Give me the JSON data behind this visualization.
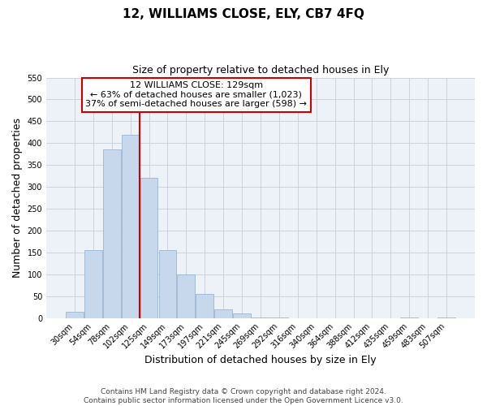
{
  "title": "12, WILLIAMS CLOSE, ELY, CB7 4FQ",
  "subtitle": "Size of property relative to detached houses in Ely",
  "xlabel": "Distribution of detached houses by size in Ely",
  "ylabel": "Number of detached properties",
  "bin_labels": [
    "30sqm",
    "54sqm",
    "78sqm",
    "102sqm",
    "125sqm",
    "149sqm",
    "173sqm",
    "197sqm",
    "221sqm",
    "245sqm",
    "269sqm",
    "292sqm",
    "316sqm",
    "340sqm",
    "364sqm",
    "388sqm",
    "412sqm",
    "435sqm",
    "459sqm",
    "483sqm",
    "507sqm"
  ],
  "bar_heights": [
    15,
    155,
    385,
    420,
    320,
    155,
    100,
    55,
    20,
    10,
    2,
    1,
    0,
    0,
    0,
    0,
    0,
    0,
    2,
    0,
    2
  ],
  "bar_color": "#c8d8ec",
  "bar_edge_color": "#9ab5d0",
  "vline_color": "#cc0000",
  "ylim": [
    0,
    550
  ],
  "yticks": [
    0,
    50,
    100,
    150,
    200,
    250,
    300,
    350,
    400,
    450,
    500,
    550
  ],
  "annotation_title": "12 WILLIAMS CLOSE: 129sqm",
  "annotation_line1": "← 63% of detached houses are smaller (1,023)",
  "annotation_line2": "37% of semi-detached houses are larger (598) →",
  "annotation_box_color": "#ffffff",
  "annotation_box_edge_color": "#cc0000",
  "footer_line1": "Contains HM Land Registry data © Crown copyright and database right 2024.",
  "footer_line2": "Contains public sector information licensed under the Open Government Licence v3.0.",
  "background_color": "#ffffff",
  "plot_bg_color": "#edf2f9",
  "grid_color": "#c8cdd6"
}
